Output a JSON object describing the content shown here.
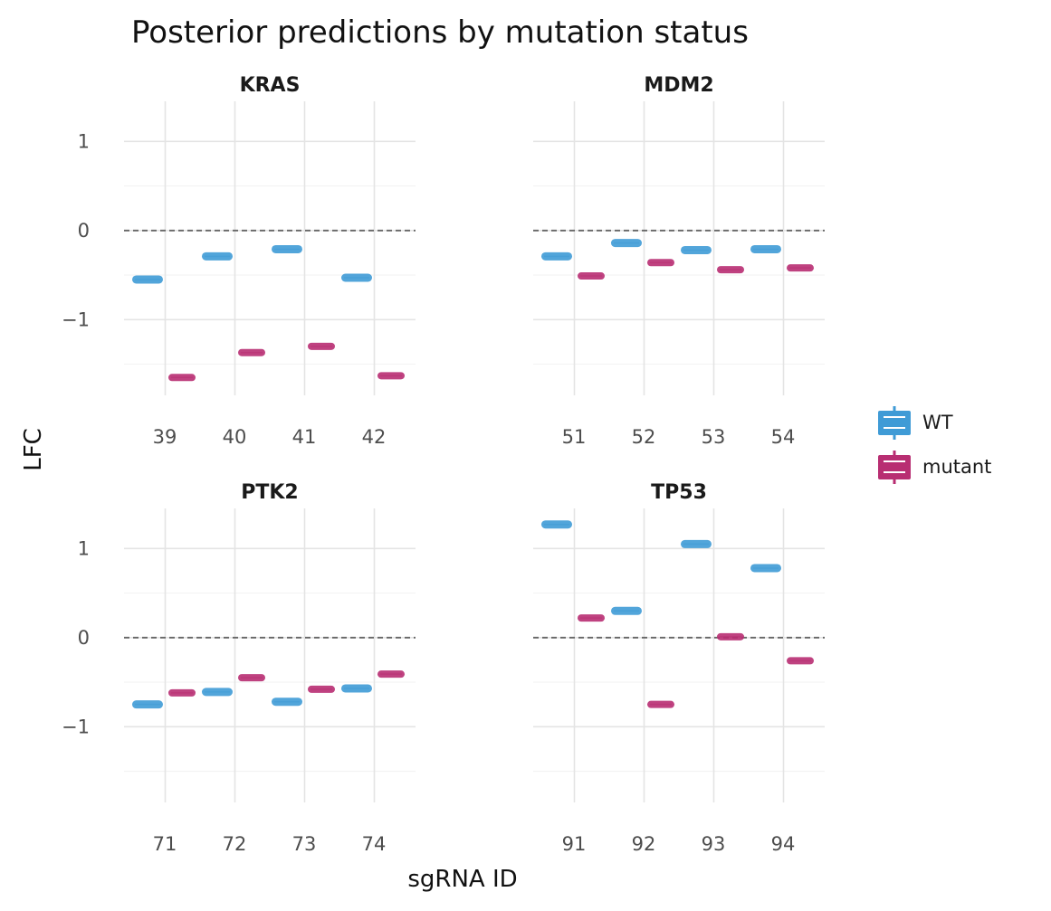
{
  "chart_data": {
    "type": "scatter",
    "title": "Posterior predictions by mutation status",
    "xlabel": "sgRNA ID",
    "ylabel": "LFC",
    "ylim": [
      -1.85,
      1.45
    ],
    "yticks": [
      1,
      0,
      -1
    ],
    "ytick_labels": [
      "1",
      "0",
      "−1"
    ],
    "reference_line": 0,
    "grid": true,
    "legend": {
      "position": "right",
      "entries": [
        {
          "key": "WT",
          "label": "WT",
          "color": "#3f9bd6"
        },
        {
          "key": "mutant",
          "label": "mutant",
          "color": "#b82e72"
        }
      ]
    },
    "panels": [
      {
        "gene": "KRAS",
        "categories": [
          "39",
          "40",
          "41",
          "42"
        ],
        "series": [
          {
            "name": "WT",
            "values": [
              -0.55,
              -0.29,
              -0.21,
              -0.53
            ]
          },
          {
            "name": "mutant",
            "values": [
              -1.65,
              -1.37,
              -1.3,
              -1.63
            ]
          }
        ]
      },
      {
        "gene": "MDM2",
        "categories": [
          "51",
          "52",
          "53",
          "54"
        ],
        "series": [
          {
            "name": "WT",
            "values": [
              -0.29,
              -0.14,
              -0.22,
              -0.21
            ]
          },
          {
            "name": "mutant",
            "values": [
              -0.51,
              -0.36,
              -0.44,
              -0.42
            ]
          }
        ]
      },
      {
        "gene": "PTK2",
        "categories": [
          "71",
          "72",
          "73",
          "74"
        ],
        "series": [
          {
            "name": "WT",
            "values": [
              -0.75,
              -0.61,
              -0.72,
              -0.57
            ]
          },
          {
            "name": "mutant",
            "values": [
              -0.62,
              -0.45,
              -0.58,
              -0.41
            ]
          }
        ]
      },
      {
        "gene": "TP53",
        "categories": [
          "91",
          "92",
          "93",
          "94"
        ],
        "series": [
          {
            "name": "WT",
            "values": [
              1.27,
              0.3,
              1.05,
              0.78
            ]
          },
          {
            "name": "mutant",
            "values": [
              0.22,
              -0.75,
              0.01,
              -0.26
            ]
          }
        ]
      }
    ]
  }
}
